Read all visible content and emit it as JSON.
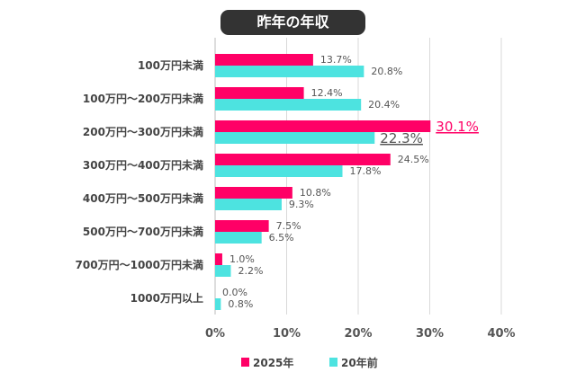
{
  "chart_data": {
    "type": "bar",
    "orientation": "horizontal",
    "title": "昨年の年収",
    "categories": [
      "100万円未満",
      "100万円～200万円未満",
      "200万円～300万円未満",
      "300万円～400万円未満",
      "400万円～500万円未満",
      "500万円～700万円未満",
      "700万円～1000万円未満",
      "1000万円以上"
    ],
    "series": [
      {
        "name": "2025年",
        "color": "#ff0066",
        "values": [
          13.7,
          12.4,
          30.1,
          24.5,
          10.8,
          7.5,
          1.0,
          0.0
        ]
      },
      {
        "name": "20年前",
        "color": "#4de3e0",
        "values": [
          20.8,
          20.4,
          22.3,
          17.8,
          9.3,
          6.5,
          2.2,
          0.8
        ]
      }
    ],
    "xlim": [
      0,
      40
    ],
    "xticks": [
      "0%",
      "10%",
      "20%",
      "30%",
      "40%"
    ],
    "grid": true,
    "legend": "bottom",
    "highlighted": "200万円～300万円未満"
  }
}
